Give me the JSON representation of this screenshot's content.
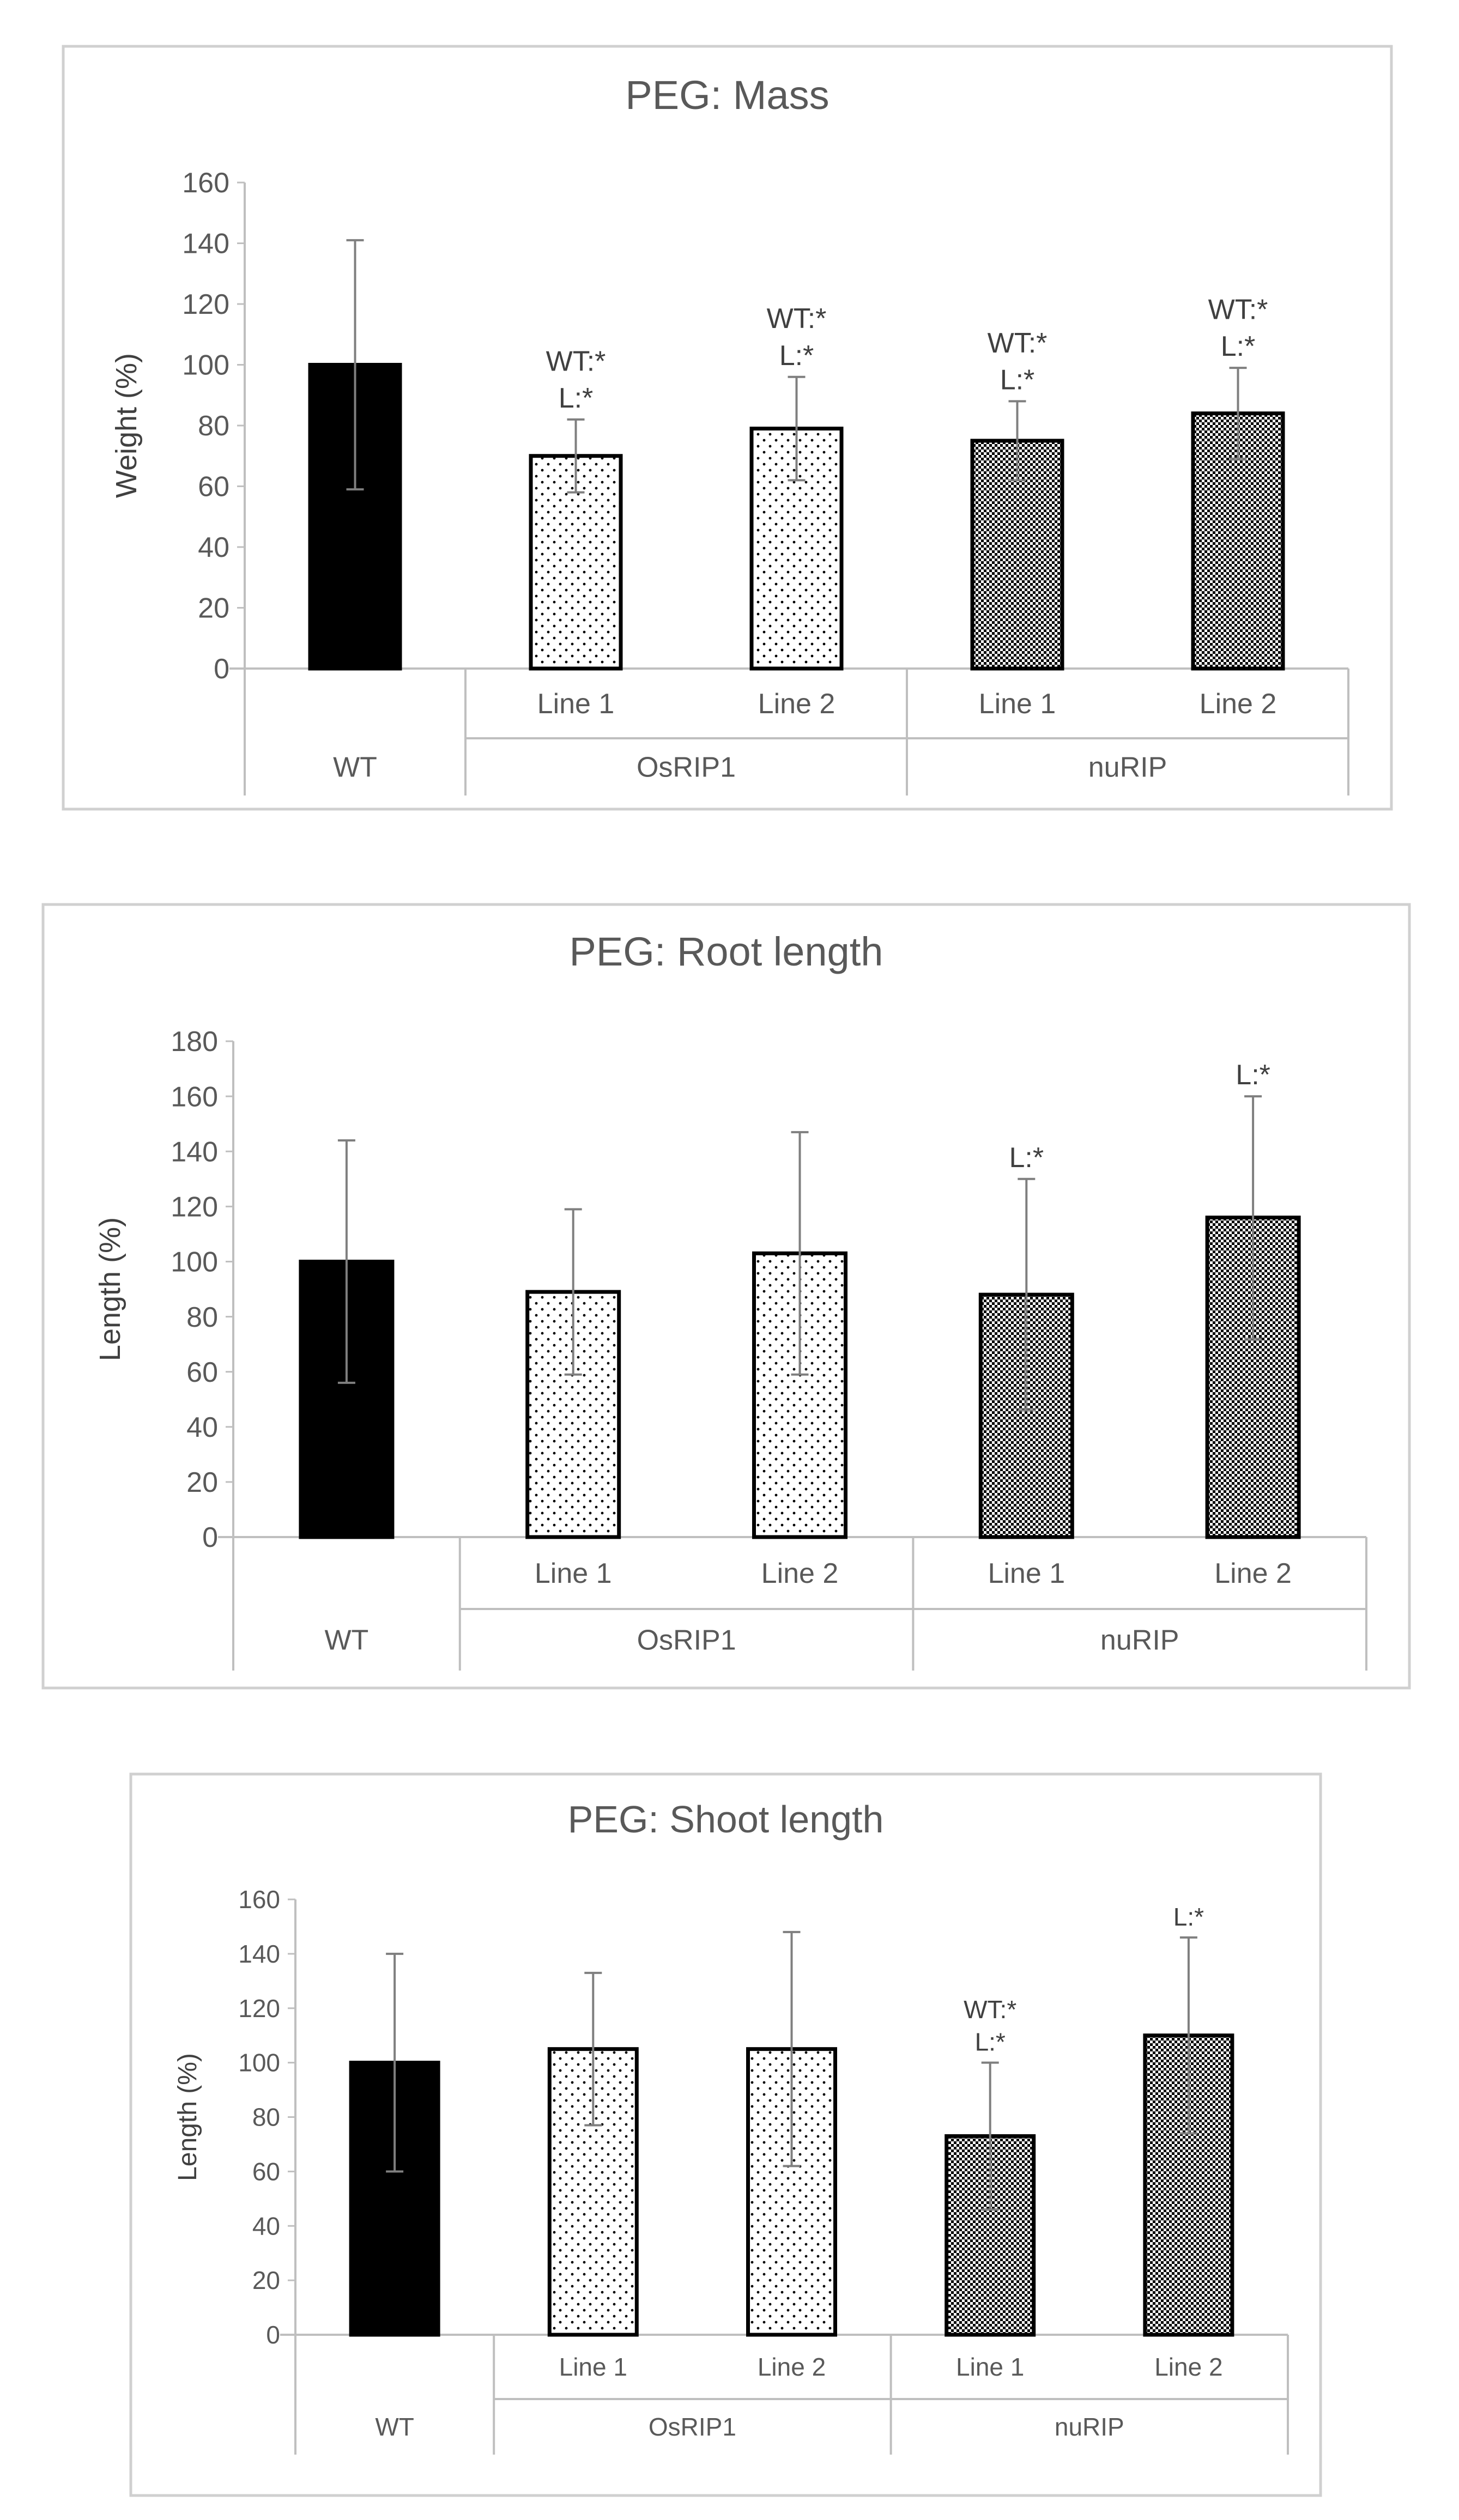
{
  "chart_data": [
    {
      "type": "bar",
      "title": "PEG: Mass",
      "ylabel": "Weight (%)",
      "xlabel": "",
      "ylim": [
        0,
        160
      ],
      "ytick_step": 20,
      "grid": false,
      "categories": [
        "WT",
        "Line 1",
        "Line 2",
        "Line 1",
        "Line 2"
      ],
      "groups": [
        {
          "label": "WT",
          "span": 1
        },
        {
          "label": "OsRIP1",
          "span": 2
        },
        {
          "label": "nuRIP",
          "span": 2
        }
      ],
      "patterns": [
        "solid",
        "dots",
        "dots",
        "dense",
        "dense"
      ],
      "values": [
        100,
        70,
        79,
        75,
        84
      ],
      "errors": [
        41,
        12,
        17,
        13,
        15
      ],
      "annotations": [
        [],
        [
          "WT:*",
          "L:*"
        ],
        [
          "WT:*",
          "L:*"
        ],
        [
          "WT:*",
          "L:*"
        ],
        [
          "WT:*",
          "L:*"
        ]
      ]
    },
    {
      "type": "bar",
      "title": "PEG: Root length",
      "ylabel": "Length (%)",
      "xlabel": "",
      "ylim": [
        0,
        180
      ],
      "ytick_step": 20,
      "grid": false,
      "categories": [
        "WT",
        "Line 1",
        "Line 2",
        "Line 1",
        "Line 2"
      ],
      "groups": [
        {
          "label": "WT",
          "span": 1
        },
        {
          "label": "OsRIP1",
          "span": 2
        },
        {
          "label": "nuRIP",
          "span": 2
        }
      ],
      "patterns": [
        "solid",
        "dots",
        "dots",
        "dense",
        "dense"
      ],
      "values": [
        100,
        89,
        103,
        88,
        116
      ],
      "errors": [
        44,
        30,
        44,
        42,
        44
      ],
      "annotations": [
        [],
        [],
        [],
        [
          "L:*"
        ],
        [
          "L:*"
        ]
      ]
    },
    {
      "type": "bar",
      "title": "PEG: Shoot length",
      "ylabel": "Length (%)",
      "xlabel": "",
      "ylim": [
        0,
        160
      ],
      "ytick_step": 20,
      "grid": false,
      "categories": [
        "WT",
        "Line 1",
        "Line 2",
        "Line 1",
        "Line 2"
      ],
      "groups": [
        {
          "label": "WT",
          "span": 1
        },
        {
          "label": "OsRIP1",
          "span": 2
        },
        {
          "label": "nuRIP",
          "span": 2
        }
      ],
      "patterns": [
        "solid",
        "dots",
        "dots",
        "dense",
        "dense"
      ],
      "values": [
        100,
        105,
        105,
        73,
        110
      ],
      "errors": [
        40,
        28,
        43,
        27,
        36
      ],
      "annotations": [
        [],
        [],
        [],
        [
          "WT:*",
          "L:*"
        ],
        [
          "L:*"
        ]
      ]
    }
  ]
}
